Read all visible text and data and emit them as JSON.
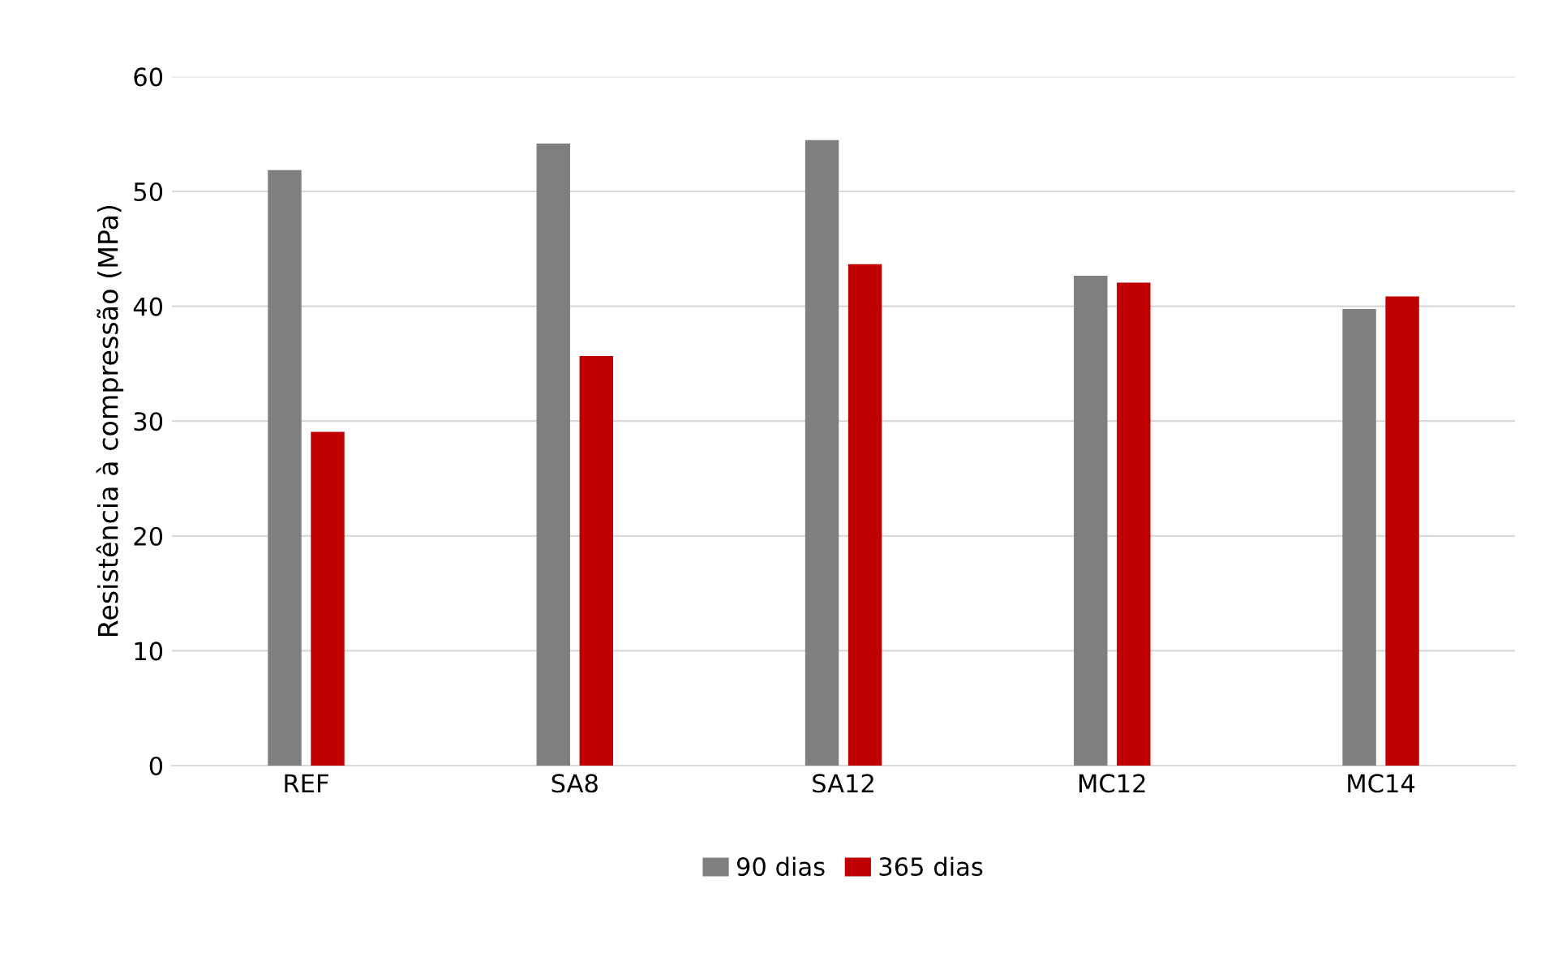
{
  "chart_data": {
    "type": "bar",
    "ylabel": "Resistência à compressão (MPa)",
    "categories": [
      "REF",
      "SA8",
      "SA12",
      "MC12",
      "MC14"
    ],
    "series": [
      {
        "name": "90 dias",
        "color": "#7f7f7f",
        "values": [
          51.8,
          54.1,
          54.4,
          42.6,
          39.7
        ]
      },
      {
        "name": "365 dias",
        "color": "#c00000",
        "values": [
          29.0,
          35.6,
          43.6,
          42.0,
          40.8
        ]
      }
    ],
    "ylim": [
      0,
      60
    ],
    "yticks": [
      0,
      10,
      20,
      30,
      40,
      50,
      60
    ],
    "grid": "y",
    "legend": "bottom"
  }
}
